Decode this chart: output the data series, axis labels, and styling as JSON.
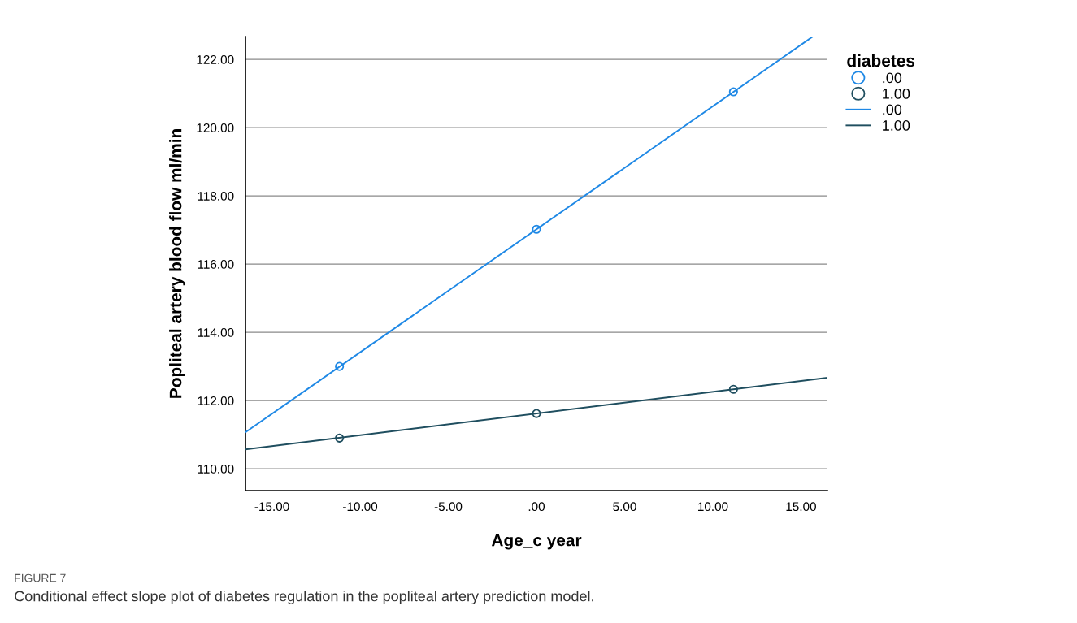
{
  "chart_data": {
    "type": "scatter",
    "xlabel": "Age_c year",
    "ylabel": "Popliteal artery blood flow ml/min",
    "legend_title": "diabetes",
    "annotations": [
      "FIGURE 7",
      "Conditional effect slope plot of diabetes regulation in the popliteal artery prediction model."
    ],
    "series": [
      {
        "name": ".00",
        "marker": "circle",
        "color": "#1e88e5",
        "x": [
          -11.17,
          0,
          11.17
        ],
        "values": [
          113.0,
          117.02,
          121.05
        ]
      },
      {
        "name": "1.00",
        "marker": "circle",
        "color": "#1f4e5f",
        "x": [
          -11.17,
          0,
          11.17
        ],
        "values": [
          110.9,
          111.62,
          112.33
        ]
      },
      {
        "name": ".00",
        "type": "line",
        "marker": "none",
        "color": "#1e88e5",
        "x": [
          -16.5,
          15.67
        ],
        "values": [
          111.07,
          122.67
        ]
      },
      {
        "name": "1.00",
        "type": "line",
        "marker": "none",
        "color": "#1f4e5f",
        "x": [
          -16.5,
          16.5
        ],
        "values": [
          110.57,
          112.67
        ]
      }
    ],
    "xlim": [
      -16.5,
      16.5
    ],
    "ylim": [
      109.36,
      122.67
    ],
    "xticks": [
      {
        "value": -15,
        "label": "-15.00"
      },
      {
        "value": -10,
        "label": "-10.00"
      },
      {
        "value": -5,
        "label": "-5.00"
      },
      {
        "value": 0,
        "label": ".00"
      },
      {
        "value": 5,
        "label": "5.00"
      },
      {
        "value": 10,
        "label": "10.00"
      },
      {
        "value": 15,
        "label": "15.00"
      }
    ],
    "yticks": [
      {
        "value": 110,
        "label": "110.00"
      },
      {
        "value": 112,
        "label": "112.00"
      },
      {
        "value": 114,
        "label": "114.00"
      },
      {
        "value": 116,
        "label": "116.00"
      },
      {
        "value": 118,
        "label": "118.00"
      },
      {
        "value": 120,
        "label": "120.00"
      },
      {
        "value": 122,
        "label": "122.00"
      }
    ],
    "grid": "y",
    "legend": "top right"
  }
}
